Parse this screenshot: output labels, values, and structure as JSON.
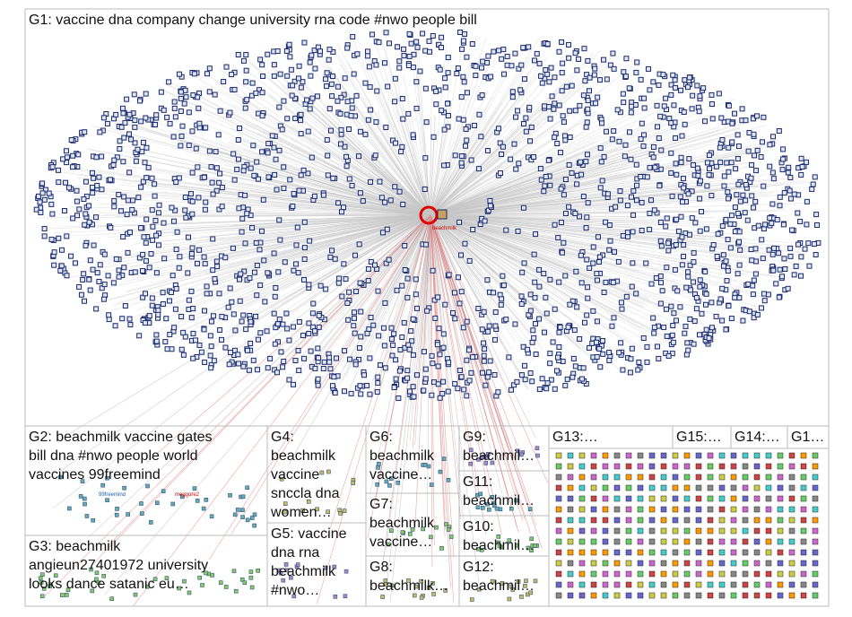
{
  "groups": [
    {
      "lines": [
        "G1: vaccine dna company change university rna code #nwo people bill"
      ]
    },
    {
      "lines": [
        "G2: beachmilk vaccine gates",
        "bill dna #nwo people world",
        "vaccines 99freemind"
      ]
    },
    {
      "lines": [
        "G3: beachmilk",
        "angieun27401972 university",
        "looks dance satanic eu…"
      ]
    },
    {
      "lines": [
        "G4:",
        "beachmilk",
        "vaccine",
        "snccla dna",
        "women…"
      ]
    },
    {
      "lines": [
        "G5: vaccine",
        "dna rna",
        "beachmilk",
        "#nwo…"
      ]
    },
    {
      "lines": [
        "G6:",
        "beachmilk",
        "vaccine…"
      ]
    },
    {
      "lines": [
        "G7:",
        "beachmilk",
        "vaccine…"
      ]
    },
    {
      "lines": [
        "G8:",
        "beachmilk…"
      ]
    },
    {
      "lines": [
        "G9:",
        "beachmil…"
      ]
    },
    {
      "lines": [
        "G11:",
        "beachmil…"
      ]
    },
    {
      "lines": [
        "G10:",
        "beachmil…"
      ]
    },
    {
      "lines": [
        "G12:",
        "beachmil…"
      ]
    },
    {
      "lines": [
        "G13:…"
      ]
    },
    {
      "lines": [
        "G15:…"
      ]
    },
    {
      "lines": [
        "G14:…"
      ]
    },
    {
      "lines": [
        "G1…"
      ]
    }
  ],
  "node_labels": [
    "beachmilk",
    "99freemind",
    "meggore2"
  ]
}
